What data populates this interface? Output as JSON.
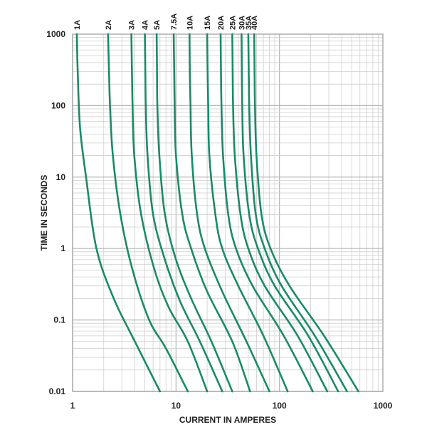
{
  "chart_data": {
    "type": "line",
    "title": "",
    "xlabel": "CURRENT IN AMPERES",
    "ylabel": "TIME IN SECONDS",
    "x_scale": "log",
    "y_scale": "log",
    "xlim": [
      1,
      1000
    ],
    "ylim": [
      0.01,
      1000
    ],
    "x_ticks": [
      1,
      10,
      100,
      1000
    ],
    "x_tick_labels": [
      "1",
      "10",
      "100",
      "1000"
    ],
    "y_ticks": [
      0.01,
      0.1,
      1,
      10,
      100,
      1000
    ],
    "y_tick_labels": [
      "0.01",
      "0.1",
      "1",
      "10",
      "100",
      "1000"
    ],
    "grid": true,
    "legend": "series labels on top of plot",
    "line_color": "#1a8a6a",
    "series": [
      {
        "name": "1A",
        "points": [
          [
            1.1,
            1000
          ],
          [
            1.12,
            300
          ],
          [
            1.18,
            50
          ],
          [
            1.35,
            10
          ],
          [
            1.7,
            1
          ],
          [
            2.5,
            0.2
          ],
          [
            4,
            0.05
          ],
          [
            7,
            0.01
          ]
        ]
      },
      {
        "name": "2A",
        "points": [
          [
            2.2,
            1000
          ],
          [
            2.25,
            300
          ],
          [
            2.3,
            100
          ],
          [
            2.45,
            20
          ],
          [
            2.9,
            3
          ],
          [
            3.8,
            0.5
          ],
          [
            5.5,
            0.1
          ],
          [
            8,
            0.04
          ],
          [
            13,
            0.01
          ]
        ]
      },
      {
        "name": "3A",
        "points": [
          [
            3.7,
            1000
          ],
          [
            3.75,
            300
          ],
          [
            3.8,
            100
          ],
          [
            3.95,
            20
          ],
          [
            4.6,
            3
          ],
          [
            6.2,
            0.5
          ],
          [
            8.5,
            0.15
          ],
          [
            13,
            0.05
          ],
          [
            20,
            0.01
          ]
        ]
      },
      {
        "name": "4A",
        "points": [
          [
            5,
            1000
          ],
          [
            5.05,
            300
          ],
          [
            5.1,
            100
          ],
          [
            5.3,
            20
          ],
          [
            6,
            3
          ],
          [
            7.8,
            0.7
          ],
          [
            11,
            0.18
          ],
          [
            17,
            0.05
          ],
          [
            28,
            0.01
          ]
        ]
      },
      {
        "name": "5A",
        "points": [
          [
            6.5,
            1000
          ],
          [
            6.55,
            300
          ],
          [
            6.6,
            100
          ],
          [
            6.9,
            20
          ],
          [
            7.8,
            3
          ],
          [
            10,
            0.7
          ],
          [
            14,
            0.2
          ],
          [
            22,
            0.05
          ],
          [
            35,
            0.01
          ]
        ]
      },
      {
        "name": "7.5A",
        "points": [
          [
            9.5,
            1000
          ],
          [
            9.6,
            300
          ],
          [
            9.7,
            100
          ],
          [
            10,
            20
          ],
          [
            11.5,
            3
          ],
          [
            14,
            1
          ],
          [
            20,
            0.25
          ],
          [
            35,
            0.05
          ],
          [
            52,
            0.01
          ]
        ]
      },
      {
        "name": "10A",
        "points": [
          [
            13.5,
            1000
          ],
          [
            13.6,
            300
          ],
          [
            13.8,
            100
          ],
          [
            14.2,
            20
          ],
          [
            16,
            3
          ],
          [
            19,
            1
          ],
          [
            28,
            0.25
          ],
          [
            48,
            0.05
          ],
          [
            80,
            0.01
          ]
        ]
      },
      {
        "name": "15A",
        "points": [
          [
            20,
            1000
          ],
          [
            20.2,
            300
          ],
          [
            20.5,
            100
          ],
          [
            21,
            20
          ],
          [
            24,
            3
          ],
          [
            28,
            1
          ],
          [
            40,
            0.3
          ],
          [
            70,
            0.06
          ],
          [
            120,
            0.01
          ]
        ]
      },
      {
        "name": "20A",
        "points": [
          [
            27,
            1000
          ],
          [
            27.2,
            300
          ],
          [
            27.5,
            100
          ],
          [
            28.5,
            20
          ],
          [
            32,
            3
          ],
          [
            38,
            1
          ],
          [
            55,
            0.3
          ],
          [
            110,
            0.06
          ],
          [
            210,
            0.01
          ]
        ]
      },
      {
        "name": "25A",
        "points": [
          [
            35,
            1000
          ],
          [
            35.3,
            300
          ],
          [
            35.6,
            100
          ],
          [
            37,
            20
          ],
          [
            42,
            3
          ],
          [
            50,
            1
          ],
          [
            72,
            0.3
          ],
          [
            150,
            0.06
          ],
          [
            290,
            0.01
          ]
        ]
      },
      {
        "name": "30A",
        "points": [
          [
            43,
            1000
          ],
          [
            43.3,
            300
          ],
          [
            43.7,
            100
          ],
          [
            45,
            20
          ],
          [
            51,
            3
          ],
          [
            62,
            1
          ],
          [
            90,
            0.3
          ],
          [
            190,
            0.06
          ],
          [
            370,
            0.01
          ]
        ]
      },
      {
        "name": "35A",
        "points": [
          [
            50,
            1000
          ],
          [
            50.5,
            300
          ],
          [
            51,
            100
          ],
          [
            53,
            20
          ],
          [
            59,
            3
          ],
          [
            72,
            1
          ],
          [
            105,
            0.3
          ],
          [
            220,
            0.06
          ],
          [
            450,
            0.01
          ]
        ]
      },
      {
        "name": "40A",
        "points": [
          [
            57,
            1000
          ],
          [
            57.5,
            300
          ],
          [
            58,
            100
          ],
          [
            60,
            20
          ],
          [
            67,
            3
          ],
          [
            82,
            1
          ],
          [
            125,
            0.3
          ],
          [
            270,
            0.06
          ],
          [
            580,
            0.01
          ]
        ]
      }
    ]
  }
}
